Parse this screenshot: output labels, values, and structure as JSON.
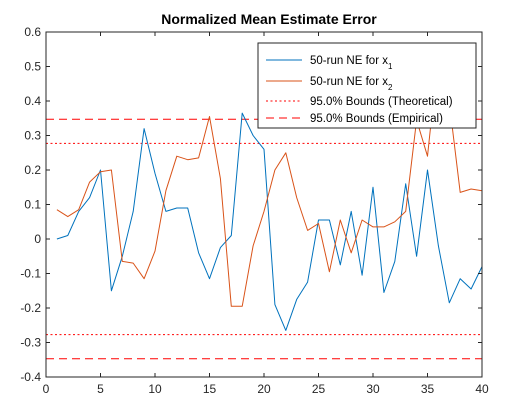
{
  "chart_data": {
    "type": "line",
    "title": "Normalized Mean Estimate Error",
    "xlabel": "",
    "ylabel": "",
    "xlim": [
      0,
      40
    ],
    "ylim": [
      -0.4,
      0.6
    ],
    "xticks": [
      0,
      5,
      10,
      15,
      20,
      25,
      30,
      35,
      40
    ],
    "yticks": [
      -0.4,
      -0.3,
      -0.2,
      -0.1,
      0,
      0.1,
      0.2,
      0.3,
      0.4,
      0.5,
      0.6
    ],
    "xtick_labels": [
      "0",
      "5",
      "10",
      "15",
      "20",
      "25",
      "30",
      "35",
      "40"
    ],
    "ytick_labels": [
      "-0.4",
      "-0.3",
      "-0.2",
      "-0.1",
      "0",
      "0.1",
      "0.2",
      "0.3",
      "0.4",
      "0.5",
      "0.6"
    ],
    "grid": false,
    "legend_position": "top-right",
    "x": [
      1,
      2,
      3,
      4,
      5,
      6,
      7,
      8,
      9,
      10,
      11,
      12,
      13,
      14,
      15,
      16,
      17,
      18,
      19,
      20,
      21,
      22,
      23,
      24,
      25,
      26,
      27,
      28,
      29,
      30,
      31,
      32,
      33,
      34,
      35,
      36,
      37,
      38,
      39,
      40
    ],
    "series": [
      {
        "name": "50-run NE for x",
        "name_sub": "1",
        "color": "#0072BD",
        "style": "solid",
        "values": [
          0.0,
          0.01,
          0.08,
          0.12,
          0.2,
          -0.15,
          -0.05,
          0.08,
          0.32,
          0.19,
          0.08,
          0.09,
          0.09,
          -0.04,
          -0.115,
          -0.025,
          0.01,
          0.365,
          0.3,
          0.26,
          -0.19,
          -0.265,
          -0.175,
          -0.125,
          0.055,
          0.055,
          -0.075,
          0.08,
          -0.105,
          0.15,
          -0.155,
          -0.065,
          0.16,
          -0.05,
          0.2,
          -0.02,
          -0.185,
          -0.115,
          -0.145,
          -0.08
        ]
      },
      {
        "name": "50-run NE for x",
        "name_sub": "2",
        "color": "#D95319",
        "style": "solid",
        "values": [
          0.085,
          0.065,
          0.085,
          0.165,
          0.195,
          0.2,
          -0.065,
          -0.07,
          -0.115,
          -0.035,
          0.14,
          0.24,
          0.23,
          0.235,
          0.355,
          0.175,
          -0.195,
          -0.195,
          -0.02,
          0.08,
          0.2,
          0.25,
          0.12,
          0.025,
          0.045,
          -0.095,
          0.055,
          -0.04,
          0.055,
          0.035,
          0.035,
          0.05,
          0.08,
          0.345,
          0.24,
          0.54,
          0.395,
          0.135,
          0.145,
          0.14
        ]
      },
      {
        "name": "95.0% Bounds (Theoretical)",
        "color": "#FF0000",
        "style": "dotted",
        "hlines": [
          0.2772,
          -0.2772
        ]
      },
      {
        "name": "95.0% Bounds (Empirical)",
        "color": "#FF0000",
        "style": "dashed",
        "hlines": [
          0.3472,
          -0.3472
        ]
      }
    ]
  }
}
